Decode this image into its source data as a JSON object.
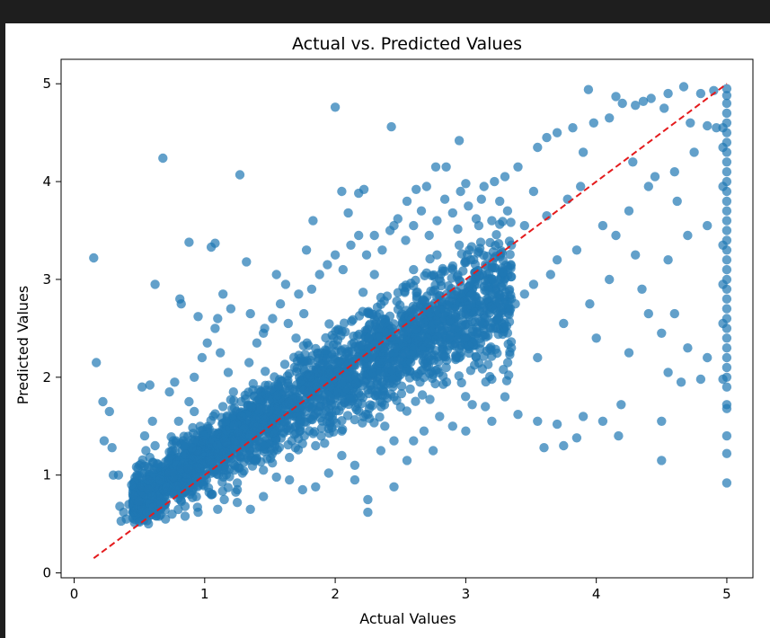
{
  "chart_data": {
    "type": "scatter",
    "title": "Actual vs. Predicted Values",
    "xlabel": "Actual Values",
    "ylabel": "Predicted Values",
    "xlim": [
      -0.1,
      5.2
    ],
    "ylim": [
      -0.05,
      5.25
    ],
    "xticks": [
      0,
      1,
      2,
      3,
      4,
      5
    ],
    "yticks": [
      0,
      1,
      2,
      3,
      4,
      5
    ],
    "grid": false,
    "marker_color": "#1f77b4",
    "marker_alpha": 0.7,
    "reference_line": {
      "x": [
        0.15,
        5.0
      ],
      "y": [
        0.15,
        5.0
      ],
      "color": "#e41a1c",
      "style": "dashed"
    },
    "points": [
      [
        0.15,
        3.22
      ],
      [
        0.17,
        2.15
      ],
      [
        0.22,
        1.75
      ],
      [
        0.27,
        1.65
      ],
      [
        0.23,
        1.35
      ],
      [
        0.29,
        1.28
      ],
      [
        0.3,
        1.0
      ],
      [
        0.34,
        1.0
      ],
      [
        0.35,
        0.68
      ],
      [
        0.36,
        0.53
      ],
      [
        0.4,
        0.55
      ],
      [
        0.45,
        0.8
      ],
      [
        0.5,
        1.1
      ],
      [
        0.55,
        1.25
      ],
      [
        0.52,
        1.9
      ],
      [
        0.58,
        1.92
      ],
      [
        0.6,
        1.55
      ],
      [
        0.62,
        2.95
      ],
      [
        0.68,
        4.24
      ],
      [
        0.73,
        1.85
      ],
      [
        0.77,
        1.95
      ],
      [
        0.81,
        2.8
      ],
      [
        0.82,
        2.75
      ],
      [
        0.88,
        3.38
      ],
      [
        0.92,
        1.65
      ],
      [
        0.95,
        2.62
      ],
      [
        1.05,
        3.33
      ],
      [
        1.08,
        3.37
      ],
      [
        1.1,
        2.6
      ],
      [
        1.14,
        2.85
      ],
      [
        1.2,
        2.7
      ],
      [
        1.27,
        4.07
      ],
      [
        1.32,
        3.18
      ],
      [
        1.35,
        2.65
      ],
      [
        1.45,
        2.45
      ],
      [
        1.55,
        3.05
      ],
      [
        1.62,
        2.95
      ],
      [
        1.72,
        2.85
      ],
      [
        1.78,
        3.3
      ],
      [
        1.83,
        3.6
      ],
      [
        2.0,
        4.76
      ],
      [
        2.05,
        3.9
      ],
      [
        2.1,
        3.68
      ],
      [
        2.18,
        3.88
      ],
      [
        2.22,
        3.92
      ],
      [
        2.3,
        3.45
      ],
      [
        2.43,
        4.56
      ],
      [
        2.45,
        3.55
      ],
      [
        2.55,
        3.8
      ],
      [
        2.62,
        3.92
      ],
      [
        2.7,
        3.95
      ],
      [
        2.77,
        4.15
      ],
      [
        2.85,
        4.15
      ],
      [
        2.95,
        4.42
      ],
      [
        3.0,
        3.98
      ],
      [
        3.12,
        3.82
      ],
      [
        3.22,
        4.0
      ],
      [
        3.3,
        4.05
      ],
      [
        3.4,
        4.15
      ],
      [
        3.55,
        4.35
      ],
      [
        3.62,
        4.45
      ],
      [
        3.7,
        4.5
      ],
      [
        3.82,
        4.55
      ],
      [
        3.9,
        4.3
      ],
      [
        3.98,
        4.6
      ],
      [
        4.1,
        4.65
      ],
      [
        4.2,
        4.8
      ],
      [
        4.3,
        4.78
      ],
      [
        4.42,
        4.85
      ],
      [
        4.55,
        4.9
      ],
      [
        4.67,
        4.97
      ],
      [
        4.8,
        4.9
      ],
      [
        4.9,
        4.93
      ],
      [
        3.94,
        4.94
      ],
      [
        4.15,
        4.87
      ],
      [
        4.36,
        4.82
      ],
      [
        4.52,
        4.75
      ],
      [
        4.72,
        4.6
      ],
      [
        4.85,
        4.57
      ],
      [
        4.92,
        4.55
      ],
      [
        4.75,
        4.3
      ],
      [
        4.6,
        4.1
      ],
      [
        4.4,
        3.95
      ],
      [
        4.25,
        3.7
      ],
      [
        4.05,
        3.55
      ],
      [
        3.85,
        3.3
      ],
      [
        3.65,
        3.05
      ],
      [
        3.45,
        2.85
      ],
      [
        3.25,
        2.6
      ],
      [
        3.05,
        2.35
      ],
      [
        2.85,
        2.1
      ],
      [
        2.65,
        1.95
      ],
      [
        2.45,
        1.8
      ],
      [
        2.25,
        1.62
      ],
      [
        2.05,
        1.45
      ],
      [
        1.85,
        1.3
      ],
      [
        1.65,
        1.18
      ],
      [
        1.45,
        1.05
      ],
      [
        1.25,
        0.92
      ],
      [
        1.05,
        0.8
      ],
      [
        0.85,
        0.68
      ],
      [
        0.65,
        0.58
      ],
      [
        0.5,
        0.52
      ],
      [
        2.15,
        0.95
      ],
      [
        2.15,
        1.1
      ],
      [
        2.25,
        0.62
      ],
      [
        2.25,
        0.75
      ],
      [
        2.45,
        0.88
      ],
      [
        2.6,
        1.35
      ],
      [
        3.0,
        1.45
      ],
      [
        3.2,
        1.55
      ],
      [
        3.4,
        1.62
      ],
      [
        3.55,
        1.55
      ],
      [
        3.7,
        1.52
      ],
      [
        3.75,
        1.3
      ],
      [
        3.85,
        1.38
      ],
      [
        3.9,
        1.6
      ],
      [
        4.05,
        1.55
      ],
      [
        4.17,
        1.4
      ],
      [
        4.19,
        1.72
      ],
      [
        4.5,
        1.55
      ],
      [
        4.5,
        1.15
      ],
      [
        4.65,
        1.95
      ],
      [
        3.6,
        1.28
      ],
      [
        3.15,
        1.7
      ],
      [
        2.8,
        1.6
      ],
      [
        3.3,
        1.8
      ],
      [
        4.0,
        2.4
      ],
      [
        4.25,
        2.25
      ],
      [
        4.4,
        2.65
      ],
      [
        4.55,
        2.05
      ],
      [
        4.7,
        2.3
      ],
      [
        4.85,
        2.2
      ],
      [
        4.6,
        2.65
      ],
      [
        4.35,
        2.9
      ],
      [
        4.1,
        3.0
      ],
      [
        3.95,
        2.75
      ],
      [
        3.75,
        2.55
      ],
      [
        3.55,
        2.2
      ],
      [
        3.35,
        2.3
      ],
      [
        3.2,
        1.98
      ],
      [
        4.8,
        1.98
      ],
      [
        4.5,
        2.45
      ],
      [
        4.3,
        3.25
      ],
      [
        4.15,
        3.45
      ],
      [
        4.55,
        3.2
      ],
      [
        4.7,
        3.45
      ],
      [
        4.85,
        3.55
      ],
      [
        4.62,
        3.8
      ],
      [
        4.45,
        4.05
      ],
      [
        4.28,
        4.2
      ],
      [
        3.05,
        2.85
      ],
      [
        3.15,
        3.15
      ],
      [
        3.35,
        3.35
      ],
      [
        3.45,
        3.55
      ],
      [
        3.62,
        3.65
      ],
      [
        3.78,
        3.82
      ],
      [
        3.88,
        3.95
      ],
      [
        3.7,
        3.2
      ],
      [
        3.52,
        2.95
      ],
      [
        3.38,
        2.75
      ],
      [
        3.52,
        3.9
      ],
      [
        3.32,
        3.7
      ],
      [
        3.1,
        3.55
      ],
      [
        2.95,
        3.35
      ],
      [
        2.78,
        3.25
      ],
      [
        2.6,
        3.1
      ],
      [
        1.85,
        0.88
      ],
      [
        1.95,
        1.02
      ],
      [
        2.05,
        1.2
      ],
      [
        1.65,
        0.95
      ],
      [
        1.75,
        0.85
      ],
      [
        1.45,
        0.78
      ],
      [
        1.55,
        0.98
      ],
      [
        1.25,
        0.72
      ],
      [
        1.35,
        0.65
      ],
      [
        1.1,
        0.65
      ],
      [
        0.95,
        0.62
      ],
      [
        0.85,
        0.58
      ],
      [
        0.75,
        0.6
      ],
      [
        0.7,
        0.55
      ],
      [
        1.15,
        0.75
      ],
      [
        1.25,
        0.85
      ],
      [
        2.35,
        1.25
      ],
      [
        2.45,
        1.35
      ],
      [
        2.55,
        1.15
      ],
      [
        2.75,
        1.25
      ],
      [
        2.9,
        1.5
      ],
      [
        3.05,
        1.72
      ],
      [
        2.68,
        1.45
      ],
      [
        2.38,
        1.5
      ],
      [
        0.38,
        0.62
      ],
      [
        0.42,
        0.7
      ],
      [
        0.44,
        0.9
      ],
      [
        0.48,
        1.0
      ],
      [
        0.52,
        1.02
      ],
      [
        0.54,
        1.4
      ],
      [
        0.58,
        1.18
      ],
      [
        0.62,
        1.3
      ],
      [
        0.56,
        0.62
      ],
      [
        0.6,
        0.78
      ],
      [
        0.66,
        0.95
      ],
      [
        0.72,
        1.15
      ],
      [
        0.78,
        1.35
      ],
      [
        0.8,
        1.55
      ],
      [
        0.88,
        1.75
      ],
      [
        0.92,
        2.0
      ],
      [
        0.98,
        2.2
      ],
      [
        1.02,
        2.35
      ],
      [
        1.08,
        2.5
      ],
      [
        1.12,
        2.25
      ],
      [
        1.18,
        2.05
      ],
      [
        1.22,
        1.85
      ],
      [
        1.28,
        1.75
      ],
      [
        1.34,
        2.15
      ],
      [
        1.4,
        2.35
      ],
      [
        1.46,
        2.5
      ],
      [
        1.52,
        2.6
      ],
      [
        1.58,
        2.75
      ],
      [
        1.64,
        2.55
      ],
      [
        1.7,
        2.4
      ],
      [
        1.76,
        2.65
      ],
      [
        1.82,
        2.9
      ],
      [
        1.88,
        3.05
      ],
      [
        1.94,
        3.15
      ],
      [
        2.0,
        3.25
      ],
      [
        2.06,
        3.1
      ],
      [
        2.12,
        3.35
      ],
      [
        2.18,
        3.45
      ],
      [
        2.24,
        3.25
      ],
      [
        2.3,
        3.05
      ],
      [
        2.36,
        3.3
      ],
      [
        2.42,
        3.5
      ],
      [
        2.48,
        3.62
      ],
      [
        2.54,
        3.4
      ],
      [
        2.6,
        3.55
      ],
      [
        2.66,
        3.7
      ],
      [
        2.72,
        3.45
      ],
      [
        2.78,
        3.6
      ],
      [
        2.84,
        3.82
      ],
      [
        2.9,
        3.68
      ],
      [
        2.96,
        3.9
      ],
      [
        3.02,
        3.75
      ],
      [
        3.08,
        3.62
      ],
      [
        3.14,
        3.95
      ],
      [
        3.2,
        3.6
      ],
      [
        3.26,
        3.8
      ],
      [
        5.0,
        4.95
      ],
      [
        5.0,
        4.88
      ],
      [
        5.0,
        4.8
      ],
      [
        5.0,
        4.7
      ],
      [
        5.0,
        4.6
      ],
      [
        5.0,
        4.5
      ],
      [
        5.0,
        4.4
      ],
      [
        5.0,
        4.3
      ],
      [
        5.0,
        4.2
      ],
      [
        5.0,
        4.1
      ],
      [
        5.0,
        4.0
      ],
      [
        5.0,
        3.9
      ],
      [
        5.0,
        3.8
      ],
      [
        5.0,
        3.7
      ],
      [
        5.0,
        3.6
      ],
      [
        5.0,
        3.5
      ],
      [
        5.0,
        3.4
      ],
      [
        5.0,
        3.3
      ],
      [
        5.0,
        3.2
      ],
      [
        5.0,
        3.1
      ],
      [
        5.0,
        3.0
      ],
      [
        5.0,
        2.9
      ],
      [
        5.0,
        2.8
      ],
      [
        5.0,
        2.7
      ],
      [
        5.0,
        2.6
      ],
      [
        5.0,
        2.5
      ],
      [
        5.0,
        2.4
      ],
      [
        5.0,
        2.3
      ],
      [
        5.0,
        2.2
      ],
      [
        5.0,
        2.1
      ],
      [
        5.0,
        2.0
      ],
      [
        5.0,
        1.9
      ],
      [
        5.0,
        1.72
      ],
      [
        5.0,
        1.68
      ],
      [
        5.0,
        1.4
      ],
      [
        5.0,
        1.22
      ],
      [
        5.0,
        0.92
      ],
      [
        4.97,
        4.55
      ],
      [
        4.97,
        4.35
      ],
      [
        4.97,
        3.95
      ],
      [
        4.97,
        3.35
      ],
      [
        4.97,
        2.95
      ],
      [
        4.97,
        2.55
      ],
      [
        4.97,
        1.98
      ]
    ]
  }
}
